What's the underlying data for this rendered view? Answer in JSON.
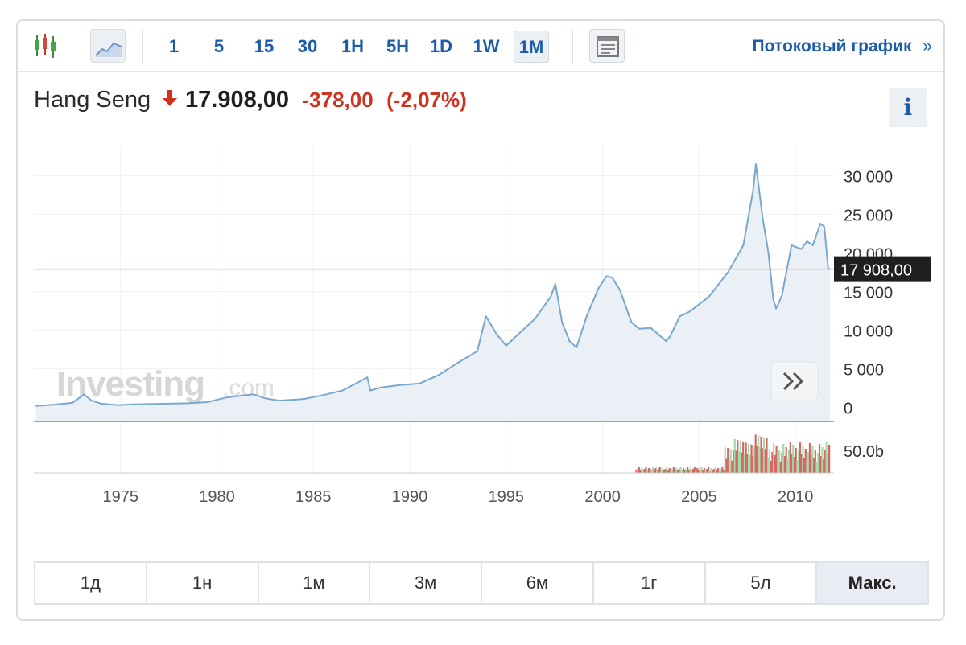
{
  "toolbar": {
    "chart_type_icons": [
      "candlestick-icon",
      "area-chart-icon"
    ],
    "intervals": [
      {
        "label": "1",
        "active": false
      },
      {
        "label": "5",
        "active": false
      },
      {
        "label": "15",
        "active": false
      },
      {
        "label": "30",
        "active": false
      },
      {
        "label": "1H",
        "active": false
      },
      {
        "label": "5H",
        "active": false
      },
      {
        "label": "1D",
        "active": false
      },
      {
        "label": "1W",
        "active": false
      },
      {
        "label": "1M",
        "active": true
      }
    ],
    "layout_icon": "table-layout-icon",
    "stream_label": "Потоковый график",
    "stream_chevron": "»"
  },
  "quote": {
    "name": "Hang Seng",
    "direction_icon": "arrow-down-icon",
    "price": "17.908,00",
    "change": "-378,00",
    "change_pct": "(-2,07%)",
    "down_color": "#d0321f"
  },
  "info_button": "i",
  "chart_data": {
    "type": "area",
    "watermark": "Investing",
    "watermark_suffix": ".com",
    "x_ticks": [
      "1975",
      "1980",
      "1985",
      "1990",
      "1995",
      "2000",
      "2005",
      "2010"
    ],
    "y_ticks": [
      "30 000",
      "25 000",
      "20 000",
      "15 000",
      "10 000",
      "5 000",
      "0"
    ],
    "volume_tick": "50.0b",
    "last_price_label": "17 908,00",
    "last_price_value": 17908,
    "ylim": [
      -1800,
      34000
    ],
    "xlim": [
      1970.5,
      2012.0
    ],
    "grid": true,
    "line_color": "#7aa7cf",
    "fill_color": "#e8eef5",
    "last_price_line_color": "#f2a8a8",
    "series": [
      {
        "x": [
          1970.6,
          1971.5,
          1972.5,
          1973.1,
          1973.5,
          1974.0,
          1974.9,
          1975.5,
          1976.5,
          1977.5,
          1978.5,
          1979.5,
          1980.5,
          1981.5,
          1981.9,
          1982.5,
          1983.2,
          1983.9,
          1984.5,
          1985.5,
          1986.5,
          1987.5,
          1987.8,
          1987.95,
          1988.5,
          1989.5,
          1990.5,
          1991.5,
          1992.5,
          1993.5,
          1993.95,
          1994.5,
          1995.0,
          1995.5,
          1996.5,
          1997.3,
          1997.55,
          1997.9,
          1998.3,
          1998.65,
          1999.2,
          1999.8,
          2000.2,
          2000.5,
          2000.9,
          2001.5,
          2001.9,
          2002.5,
          2003.3,
          2003.5,
          2004.0,
          2004.5,
          2005.5,
          2006.5,
          2007.3,
          2007.8,
          2007.95,
          2008.3,
          2008.6,
          2008.85,
          2009.0,
          2009.3,
          2009.8,
          2010.3,
          2010.6,
          2010.9,
          2011.3,
          2011.5,
          2011.7,
          2011.8
        ],
        "values": [
          200,
          350,
          600,
          1700,
          900,
          500,
          300,
          400,
          450,
          500,
          550,
          700,
          1300,
          1600,
          1700,
          1200,
          900,
          1000,
          1100,
          1600,
          2200,
          3500,
          3900,
          2200,
          2600,
          2900,
          3100,
          4200,
          5800,
          7300,
          11800,
          9500,
          8000,
          9200,
          11500,
          14300,
          16000,
          11000,
          8500,
          7800,
          12000,
          15500,
          17000,
          16800,
          15200,
          11000,
          10200,
          10300,
          8600,
          9200,
          11800,
          12400,
          14300,
          17500,
          21000,
          28000,
          31500,
          24500,
          20000,
          14000,
          12800,
          14500,
          21000,
          20500,
          21500,
          21000,
          23800,
          23400,
          18000,
          17908
        ]
      }
    ],
    "volume": {
      "color_up": "#a8dba8",
      "color_down": "#d46868"
    }
  },
  "ranges": [
    {
      "label": "1д",
      "active": false
    },
    {
      "label": "1н",
      "active": false
    },
    {
      "label": "1м",
      "active": false
    },
    {
      "label": "3м",
      "active": false
    },
    {
      "label": "6м",
      "active": false
    },
    {
      "label": "1г",
      "active": false
    },
    {
      "label": "5л",
      "active": false
    },
    {
      "label": "Макс.",
      "active": true
    }
  ],
  "expand_button_icon": "double-chevron-right-icon"
}
